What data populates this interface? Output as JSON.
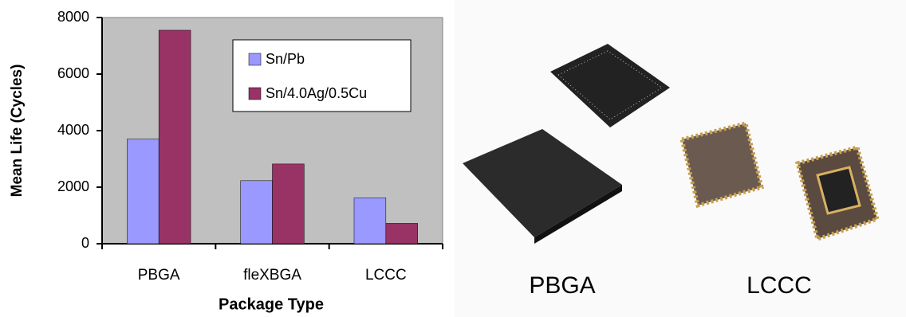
{
  "chart_data": {
    "type": "bar",
    "x_label": "Package Type",
    "y_label": "Mean Life (Cycles)",
    "categories": [
      "PBGA",
      "fleXBGA",
      "LCCC"
    ],
    "series": [
      {
        "name": "Sn/Pb",
        "color": "#9999ff",
        "values": [
          3700,
          2230,
          1620
        ]
      },
      {
        "name": "Sn/4.0Ag/0.5Cu",
        "color": "#993366",
        "values": [
          7550,
          2820,
          720
        ]
      }
    ],
    "ylim": [
      0,
      8000
    ],
    "yticks": [
      0,
      2000,
      4000,
      6000,
      8000
    ],
    "legend": "top-right",
    "plot_background": "#c0c0c0"
  },
  "photos": {
    "labels": [
      "PBGA",
      "LCCC"
    ]
  }
}
